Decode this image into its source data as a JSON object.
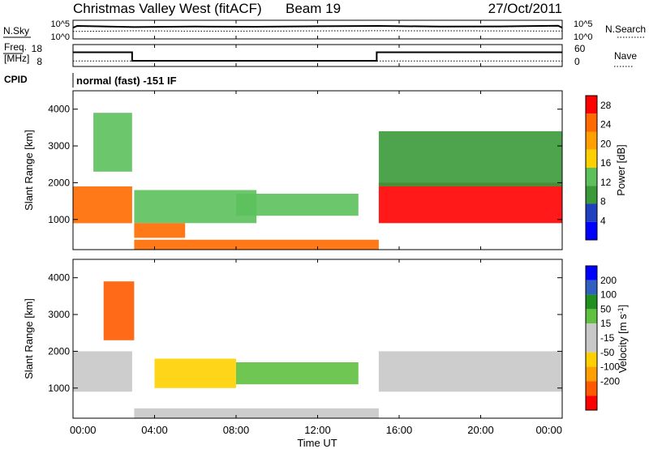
{
  "header": {
    "station": "Christmas Valley West (fitACF)",
    "beam": "Beam 19",
    "date": "27/Oct/2011"
  },
  "noise_panel": {
    "left_label": "N.Sky",
    "right_label": "N.Search",
    "left_ticks": [
      "10^5",
      "10^0"
    ],
    "right_ticks": [
      "10^5",
      "10^0"
    ]
  },
  "freq_panel": {
    "left_label_line1": "Freq.",
    "left_label_line2": "[MHz]",
    "right_label": "Nave",
    "left_ticks": [
      "18",
      "8"
    ],
    "right_ticks": [
      "60",
      "0"
    ]
  },
  "cpid": {
    "label": "CPID",
    "program": "normal (fast) -151 IF"
  },
  "x_axis": {
    "label": "Time UT",
    "ticks": [
      "00:00",
      "04:00",
      "08:00",
      "12:00",
      "16:00",
      "20:00",
      "00:00"
    ]
  },
  "colors": {
    "power_scale": [
      "#0000ff",
      "#2040c0",
      "#3a9a3a",
      "#5cc05c",
      "#ffd000",
      "#ff9f00",
      "#ff6a00",
      "#ff0000"
    ],
    "velocity_scale": [
      "#ff0000",
      "#ff5a00",
      "#ff9f00",
      "#ffd000",
      "#c8c8c8",
      "#c8c8c8",
      "#60c040",
      "#209020",
      "#3060c0",
      "#0000ff"
    ]
  },
  "chart_data": [
    {
      "type": "line",
      "title": "Christmas Valley West (fitACF)",
      "panel": "noise",
      "series": [
        {
          "name": "N.Sky",
          "x_hours": [
            0,
            0.2,
            3,
            6,
            9,
            12,
            15,
            18,
            21,
            23.8,
            24
          ],
          "values": [
            1000,
            3000,
            1500,
            2000,
            1800,
            2500,
            3000,
            2000,
            2200,
            3500,
            1000
          ]
        },
        {
          "name": "N.Search",
          "x_hours": [
            0,
            3,
            6,
            9,
            12,
            15,
            18,
            21,
            24
          ],
          "values": [
            100,
            150,
            120,
            130,
            140,
            160,
            150,
            140,
            130
          ]
        }
      ],
      "ylim": [
        1,
        100000
      ],
      "y_scale": "log"
    },
    {
      "type": "line",
      "panel": "freq",
      "series": [
        {
          "name": "Freq.",
          "x_hours": [
            0,
            2.9,
            2.9,
            14.9,
            14.9,
            24
          ],
          "values": [
            14.5,
            14.5,
            10.6,
            10.6,
            14.5,
            14.5
          ]
        },
        {
          "name": "Nave",
          "x_hours": [
            0,
            24
          ],
          "values": [
            15,
            15
          ]
        }
      ],
      "ylim": [
        8,
        18
      ],
      "y2lim": [
        0,
        60
      ]
    },
    {
      "type": "heatmap",
      "panel": "power",
      "xlabel": "Time UT",
      "ylabel": "Slant Range [km]",
      "xlim": [
        0,
        24
      ],
      "ylim": [
        180,
        4500
      ],
      "y_ticks": [
        1000,
        2000,
        3000,
        4000
      ],
      "colorbar": {
        "label": "Power [dB]",
        "ticks": [
          4,
          8,
          12,
          16,
          20,
          24,
          28
        ],
        "range": [
          0,
          30
        ]
      },
      "regions": [
        {
          "t": [
            0,
            2.9
          ],
          "r": [
            900,
            1900
          ],
          "value": 24
        },
        {
          "t": [
            1,
            2.9
          ],
          "r": [
            2300,
            3900
          ],
          "value": 14
        },
        {
          "t": [
            3,
            9
          ],
          "r": [
            900,
            1800
          ],
          "value": 12
        },
        {
          "t": [
            3,
            5.5
          ],
          "r": [
            500,
            900
          ],
          "value": 26
        },
        {
          "t": [
            3,
            15
          ],
          "r": [
            180,
            450
          ],
          "value": 24
        },
        {
          "t": [
            8,
            14
          ],
          "r": [
            1100,
            1700
          ],
          "value": 14
        },
        {
          "t": [
            15,
            24
          ],
          "r": [
            900,
            2000
          ],
          "value": 27
        },
        {
          "t": [
            15,
            24
          ],
          "r": [
            1900,
            3400
          ],
          "value": 8
        }
      ]
    },
    {
      "type": "heatmap",
      "panel": "velocity",
      "xlabel": "Time UT",
      "ylabel": "Slant Range [km]",
      "xlim": [
        0,
        24
      ],
      "ylim": [
        180,
        4500
      ],
      "y_ticks": [
        1000,
        2000,
        3000,
        4000
      ],
      "colorbar": {
        "label": "Velocity [m s^-1]",
        "ticks": [
          200,
          100,
          50,
          15,
          -15,
          -50,
          -100,
          -200
        ]
      },
      "regions": [
        {
          "t": [
            0,
            2.9
          ],
          "r": [
            900,
            2000
          ],
          "value": 0
        },
        {
          "t": [
            1.5,
            3
          ],
          "r": [
            2300,
            3900
          ],
          "value": -150
        },
        {
          "t": [
            4,
            8
          ],
          "r": [
            1000,
            1800
          ],
          "value": -60
        },
        {
          "t": [
            8,
            14
          ],
          "r": [
            1100,
            1700
          ],
          "value": 60
        },
        {
          "t": [
            3,
            15
          ],
          "r": [
            180,
            450
          ],
          "value": -40
        },
        {
          "t": [
            15,
            24
          ],
          "r": [
            900,
            2000
          ],
          "value": 0
        }
      ]
    }
  ]
}
